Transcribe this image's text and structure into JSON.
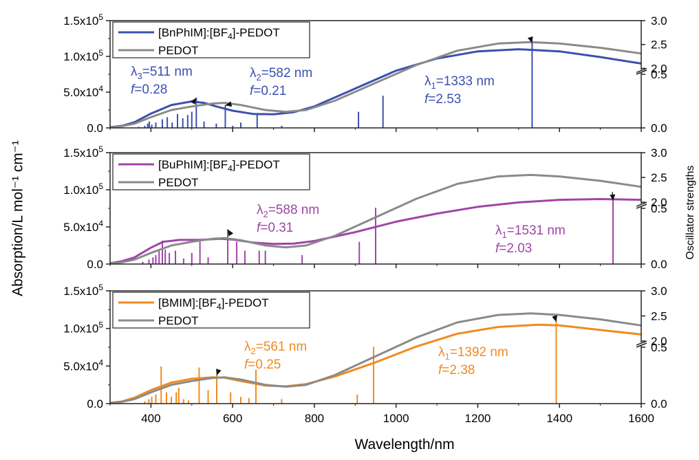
{
  "figure": {
    "xlabel": "Wavelength/nm",
    "ylabel_left": "Absorption/L mol⁻¹ cm⁻¹",
    "ylabel_right": "Oscillator strengths"
  },
  "chart_data": [
    {
      "type": "line",
      "panel": "top",
      "xlim": [
        300,
        1600
      ],
      "xticks": [
        "400",
        "600",
        "800",
        "1000",
        "1200",
        "1400",
        "1600"
      ],
      "ylim": [
        0,
        150000
      ],
      "yticks_left": [
        "0.0",
        "5.0x10⁴",
        "1.0x10⁵",
        "1.5x10⁵"
      ],
      "yticks_right": [
        "0.0",
        "0.5",
        "2.0",
        "2.5",
        "3.0"
      ],
      "legend_position": "top-left",
      "series": [
        {
          "name": "[BnPhIM]:[BF4]-PEDOT",
          "color": "#3a4fb0",
          "points": [
            [
              300,
              1000
            ],
            [
              330,
              3000
            ],
            [
              360,
              8000
            ],
            [
              400,
              20000
            ],
            [
              450,
              32000
            ],
            [
              500,
              37000
            ],
            [
              530,
              35000
            ],
            [
              560,
              30000
            ],
            [
              600,
              24000
            ],
            [
              650,
              19500
            ],
            [
              700,
              19000
            ],
            [
              750,
              22000
            ],
            [
              800,
              30000
            ],
            [
              900,
              55000
            ],
            [
              1000,
              80000
            ],
            [
              1100,
              97000
            ],
            [
              1200,
              107000
            ],
            [
              1300,
              110000
            ],
            [
              1400,
              107000
            ],
            [
              1500,
              99000
            ],
            [
              1600,
              90000
            ]
          ]
        },
        {
          "name": "PEDOT",
          "color": "#8a8a8a",
          "points": [
            [
              300,
              700
            ],
            [
              330,
              2500
            ],
            [
              360,
              6000
            ],
            [
              400,
              15000
            ],
            [
              450,
              25000
            ],
            [
              500,
              30000
            ],
            [
              550,
              34000
            ],
            [
              580,
              35000
            ],
            [
              620,
              32000
            ],
            [
              680,
              25000
            ],
            [
              730,
              22500
            ],
            [
              780,
              25000
            ],
            [
              850,
              38000
            ],
            [
              950,
              63000
            ],
            [
              1050,
              88000
            ],
            [
              1150,
              108000
            ],
            [
              1250,
              118000
            ],
            [
              1330,
              120000
            ],
            [
              1400,
              118000
            ],
            [
              1500,
              112000
            ],
            [
              1600,
              104000
            ]
          ]
        }
      ],
      "sticks_color": "#3a4fb0",
      "sticks": [
        [
          370,
          0.01
        ],
        [
          385,
          0.02
        ],
        [
          392,
          0.04
        ],
        [
          396,
          0.06
        ],
        [
          402,
          0.03
        ],
        [
          412,
          0.05
        ],
        [
          428,
          0.08
        ],
        [
          440,
          0.1
        ],
        [
          452,
          0.05
        ],
        [
          465,
          0.13
        ],
        [
          478,
          0.09
        ],
        [
          490,
          0.12
        ],
        [
          500,
          0.15
        ],
        [
          511,
          0.28
        ],
        [
          530,
          0.06
        ],
        [
          560,
          0.04
        ],
        [
          582,
          0.21
        ],
        [
          600,
          0.02
        ],
        [
          620,
          0.05
        ],
        [
          660,
          0.13
        ],
        [
          720,
          0.02
        ],
        [
          908,
          0.15
        ],
        [
          968,
          0.3
        ],
        [
          1333,
          2.53
        ]
      ],
      "annotations": [
        {
          "text_lines": [
            "λ3=511 nm",
            "f=0.28"
          ],
          "x": 511,
          "f": 0.28
        },
        {
          "text_lines": [
            "λ2=582 nm",
            "f=0.21"
          ],
          "x": 582,
          "f": 0.21
        },
        {
          "text_lines": [
            "λ1=1333 nm",
            "f=2.53"
          ],
          "x": 1333,
          "f": 2.53
        }
      ]
    },
    {
      "type": "line",
      "panel": "middle",
      "xlim": [
        300,
        1600
      ],
      "xticks": [
        "400",
        "600",
        "800",
        "1000",
        "1200",
        "1400",
        "1600"
      ],
      "ylim": [
        0,
        150000
      ],
      "yticks_left": [
        "0.0",
        "5.0x10⁴",
        "1.0x10⁵",
        "1.5x10⁵"
      ],
      "yticks_right": [
        "0.0",
        "0.5",
        "2.0",
        "2.5",
        "3.0"
      ],
      "legend_position": "top-left",
      "series": [
        {
          "name": "[BuPhIM]:[BF4]-PEDOT",
          "color": "#a044a8",
          "points": [
            [
              300,
              1000
            ],
            [
              330,
              4000
            ],
            [
              360,
              9000
            ],
            [
              400,
              22000
            ],
            [
              430,
              30000
            ],
            [
              470,
              32500
            ],
            [
              520,
              32500
            ],
            [
              570,
              34000
            ],
            [
              600,
              33000
            ],
            [
              650,
              29000
            ],
            [
              700,
              27000
            ],
            [
              750,
              27500
            ],
            [
              800,
              31000
            ],
            [
              900,
              43000
            ],
            [
              1000,
              57000
            ],
            [
              1100,
              68000
            ],
            [
              1200,
              77000
            ],
            [
              1300,
              83000
            ],
            [
              1400,
              86500
            ],
            [
              1500,
              87500
            ],
            [
              1600,
              86500
            ]
          ]
        },
        {
          "name": "PEDOT",
          "color": "#8a8a8a",
          "points": [
            [
              300,
              700
            ],
            [
              330,
              2500
            ],
            [
              360,
              6000
            ],
            [
              400,
              15000
            ],
            [
              450,
              25000
            ],
            [
              500,
              30000
            ],
            [
              550,
              34000
            ],
            [
              580,
              35000
            ],
            [
              620,
              32000
            ],
            [
              680,
              25000
            ],
            [
              730,
              22500
            ],
            [
              780,
              25000
            ],
            [
              850,
              38000
            ],
            [
              950,
              63000
            ],
            [
              1050,
              88000
            ],
            [
              1150,
              108000
            ],
            [
              1250,
              118000
            ],
            [
              1330,
              120000
            ],
            [
              1400,
              118000
            ],
            [
              1500,
              112000
            ],
            [
              1600,
              104000
            ]
          ]
        }
      ],
      "sticks_color": "#a044a8",
      "sticks": [
        [
          380,
          0.02
        ],
        [
          395,
          0.04
        ],
        [
          405,
          0.06
        ],
        [
          412,
          0.08
        ],
        [
          420,
          0.12
        ],
        [
          428,
          0.21
        ],
        [
          435,
          0.13
        ],
        [
          445,
          0.1
        ],
        [
          460,
          0.12
        ],
        [
          480,
          0.05
        ],
        [
          500,
          0.1
        ],
        [
          520,
          0.2
        ],
        [
          540,
          0.06
        ],
        [
          588,
          0.31
        ],
        [
          610,
          0.2
        ],
        [
          630,
          0.12
        ],
        [
          665,
          0.12
        ],
        [
          680,
          0.12
        ],
        [
          770,
          0.08
        ],
        [
          910,
          0.2
        ],
        [
          950,
          0.65
        ],
        [
          1531,
          2.03
        ]
      ],
      "annotations": [
        {
          "text_lines": [
            "λ2=588 nm",
            "f=0.31"
          ],
          "x": 588,
          "f": 0.31
        },
        {
          "text_lines": [
            "λ1=1531 nm",
            "f=2.03"
          ],
          "x": 1531,
          "f": 2.03
        }
      ]
    },
    {
      "type": "line",
      "panel": "bottom",
      "xlim": [
        300,
        1600
      ],
      "xticks": [
        "400",
        "600",
        "800",
        "1000",
        "1200",
        "1400",
        "1600"
      ],
      "ylim": [
        0,
        150000
      ],
      "yticks_left": [
        "0.0",
        "5.0x10⁴",
        "1.0x10⁵",
        "1.5x10⁵"
      ],
      "yticks_right": [
        "0.0",
        "0.5",
        "2.0",
        "2.5",
        "3.0"
      ],
      "legend_position": "top-left",
      "series": [
        {
          "name": "[BMIM]:[BF4]-PEDOT",
          "color": "#f28a1e",
          "points": [
            [
              300,
              1000
            ],
            [
              330,
              3000
            ],
            [
              360,
              8000
            ],
            [
              400,
              18000
            ],
            [
              450,
              28000
            ],
            [
              500,
              33000
            ],
            [
              550,
              35000
            ],
            [
              580,
              34500
            ],
            [
              620,
              30000
            ],
            [
              680,
              24000
            ],
            [
              730,
              23000
            ],
            [
              780,
              26000
            ],
            [
              850,
              36000
            ],
            [
              950,
              55000
            ],
            [
              1050,
              76000
            ],
            [
              1150,
              93000
            ],
            [
              1250,
              102000
            ],
            [
              1350,
              105000
            ],
            [
              1400,
              104000
            ],
            [
              1500,
              98000
            ],
            [
              1600,
              92000
            ]
          ]
        },
        {
          "name": "PEDOT",
          "color": "#8a8a8a",
          "points": [
            [
              300,
              700
            ],
            [
              330,
              2500
            ],
            [
              360,
              6000
            ],
            [
              400,
              15000
            ],
            [
              450,
              25000
            ],
            [
              500,
              30000
            ],
            [
              550,
              34000
            ],
            [
              580,
              35000
            ],
            [
              620,
              32000
            ],
            [
              680,
              25000
            ],
            [
              730,
              22500
            ],
            [
              780,
              25000
            ],
            [
              850,
              38000
            ],
            [
              950,
              63000
            ],
            [
              1050,
              88000
            ],
            [
              1150,
              108000
            ],
            [
              1250,
              118000
            ],
            [
              1330,
              120000
            ],
            [
              1400,
              118000
            ],
            [
              1500,
              112000
            ],
            [
              1600,
              104000
            ]
          ]
        }
      ],
      "sticks_color": "#f28a1e",
      "sticks": [
        [
          385,
          0.02
        ],
        [
          395,
          0.04
        ],
        [
          402,
          0.06
        ],
        [
          412,
          0.08
        ],
        [
          425,
          0.33
        ],
        [
          438,
          0.1
        ],
        [
          450,
          0.06
        ],
        [
          462,
          0.1
        ],
        [
          468,
          0.14
        ],
        [
          480,
          0.04
        ],
        [
          492,
          0.03
        ],
        [
          518,
          0.32
        ],
        [
          540,
          0.12
        ],
        [
          561,
          0.25
        ],
        [
          595,
          0.1
        ],
        [
          620,
          0.06
        ],
        [
          640,
          0.05
        ],
        [
          657,
          0.3
        ],
        [
          720,
          0.04
        ],
        [
          905,
          0.08
        ],
        [
          945,
          0.6
        ],
        [
          1392,
          2.38
        ]
      ],
      "annotations": [
        {
          "text_lines": [
            "λ2=561 nm",
            "f=0.25"
          ],
          "x": 561,
          "f": 0.25
        },
        {
          "text_lines": [
            "λ1=1392 nm",
            "f=2.38"
          ],
          "x": 1392,
          "f": 2.38
        }
      ]
    }
  ]
}
